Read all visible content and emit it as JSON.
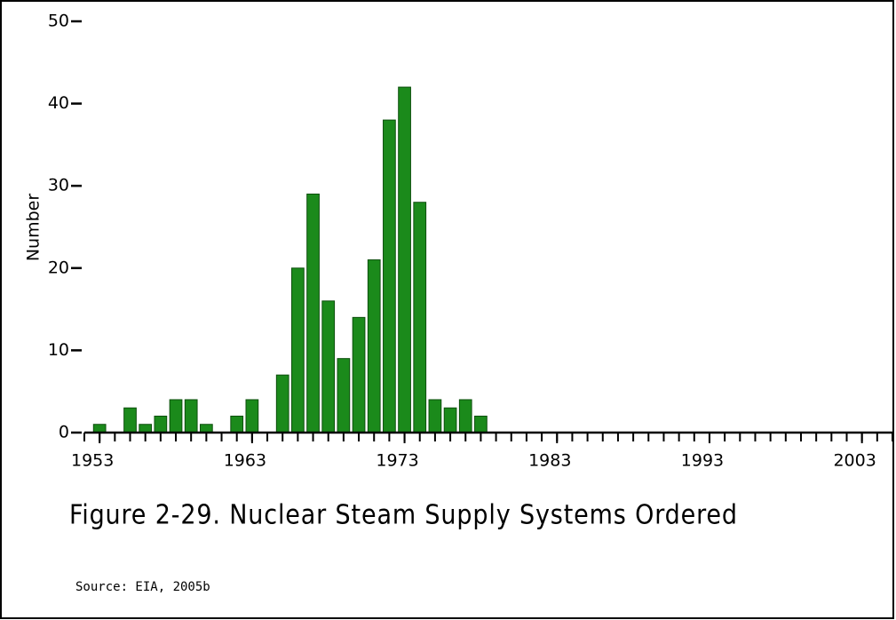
{
  "chart_data": {
    "type": "bar",
    "title": "Figure 2-29.  Nuclear Steam Supply Systems Ordered",
    "source": "Source:  EIA, 2005b",
    "y_label": "Number",
    "x": [
      1953,
      1954,
      1955,
      1956,
      1957,
      1958,
      1959,
      1960,
      1961,
      1962,
      1963,
      1964,
      1965,
      1966,
      1967,
      1968,
      1969,
      1970,
      1971,
      1972,
      1973,
      1974,
      1975,
      1976,
      1977,
      1978
    ],
    "values": [
      1,
      0,
      3,
      1,
      2,
      4,
      4,
      1,
      0,
      2,
      4,
      0,
      7,
      20,
      29,
      16,
      9,
      14,
      21,
      38,
      42,
      28,
      4,
      3,
      4,
      2
    ],
    "color": "#1b8a1b",
    "xlim": [
      1952,
      2005
    ],
    "xticks": [
      1953,
      1963,
      1973,
      1983,
      1993,
      2003
    ],
    "ylim": [
      0,
      50
    ],
    "yticks": [
      0,
      10,
      20,
      30,
      40,
      50
    ]
  }
}
